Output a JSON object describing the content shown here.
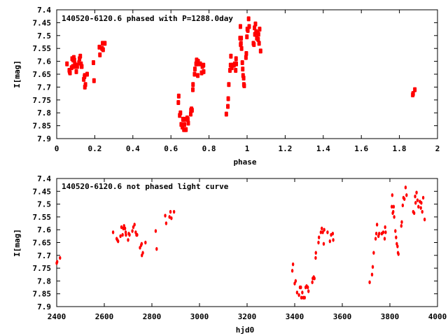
{
  "colors": {
    "marker": "#ff0000",
    "axis": "#000000"
  },
  "chart_data": [
    {
      "type": "scatter",
      "title": "140520-6120.6 phased with P=1288.0day",
      "xlabel": "phase",
      "ylabel": "I[mag]",
      "xlim": [
        0,
        2
      ],
      "ylim": [
        7.4,
        7.9
      ],
      "y_reversed": true,
      "xticks": [
        "0",
        "0.2",
        "0.4",
        "0.6",
        "0.8",
        "1",
        "1.2",
        "1.4",
        "1.6",
        "1.8",
        "2"
      ],
      "yticks": [
        "7.4",
        "7.45",
        "7.5",
        "7.55",
        "7.6",
        "7.65",
        "7.7",
        "7.75",
        "7.8",
        "7.85",
        "7.9"
      ],
      "x_field": "phase",
      "grid": false
    },
    {
      "type": "scatter",
      "title": "140520-6120.6 not phased light curve",
      "xlabel": "hjd0",
      "ylabel": "I[mag]",
      "xlim": [
        2400,
        4000
      ],
      "ylim": [
        7.4,
        7.9
      ],
      "y_reversed": true,
      "xticks": [
        "2400",
        "2600",
        "2800",
        "3000",
        "3200",
        "3400",
        "3600",
        "3800",
        "4000"
      ],
      "yticks": [
        "7.4",
        "7.45",
        "7.5",
        "7.55",
        "7.6",
        "7.65",
        "7.7",
        "7.75",
        "7.8",
        "7.85",
        "7.9"
      ],
      "x_field": "hjd",
      "grid": false
    }
  ],
  "points_fields": [
    "hjd",
    "phase",
    "mag"
  ],
  "points": [
    [
      2400,
      1.87,
      7.73
    ],
    [
      2402,
      1.872,
      7.725
    ],
    [
      2414,
      1.881,
      7.71
    ],
    [
      2637,
      0.054,
      7.61
    ],
    [
      2652,
      0.066,
      7.635
    ],
    [
      2655,
      0.068,
      7.64
    ],
    [
      2658,
      0.07,
      7.645
    ],
    [
      2668,
      0.078,
      7.625
    ],
    [
      2672,
      0.081,
      7.59
    ],
    [
      2677,
      0.085,
      7.62
    ],
    [
      2680,
      0.087,
      7.595
    ],
    [
      2683,
      0.09,
      7.585
    ],
    [
      2687,
      0.093,
      7.595
    ],
    [
      2690,
      0.095,
      7.61
    ],
    [
      2691,
      0.096,
      7.62
    ],
    [
      2700,
      0.103,
      7.64
    ],
    [
      2703,
      0.105,
      7.615
    ],
    [
      2706,
      0.108,
      7.62
    ],
    [
      2718,
      0.117,
      7.605
    ],
    [
      2722,
      0.12,
      7.59
    ],
    [
      2727,
      0.124,
      7.58
    ],
    [
      2732,
      0.128,
      7.61
    ],
    [
      2735,
      0.13,
      7.62
    ],
    [
      2738,
      0.132,
      7.62
    ],
    [
      2750,
      0.142,
      7.67
    ],
    [
      2755,
      0.146,
      7.66
    ],
    [
      2757,
      0.147,
      7.655
    ],
    [
      2758,
      0.148,
      7.7
    ],
    [
      2762,
      0.151,
      7.69
    ],
    [
      2773,
      0.16,
      7.65
    ],
    [
      2816,
      0.193,
      7.605
    ],
    [
      2820,
      0.196,
      7.675
    ],
    [
      2856,
      0.224,
      7.545
    ],
    [
      2860,
      0.227,
      7.575
    ],
    [
      2874,
      0.238,
      7.55
    ],
    [
      2878,
      0.241,
      7.53
    ],
    [
      2882,
      0.244,
      7.555
    ],
    [
      2893,
      0.253,
      7.53
    ],
    [
      3390,
      0.639,
      7.76
    ],
    [
      3393,
      0.641,
      7.735
    ],
    [
      3400,
      0.646,
      7.81
    ],
    [
      3404,
      0.65,
      7.8
    ],
    [
      3410,
      0.654,
      7.845
    ],
    [
      3418,
      0.66,
      7.855
    ],
    [
      3422,
      0.663,
      7.825
    ],
    [
      3426,
      0.667,
      7.825
    ],
    [
      3428,
      0.668,
      7.865
    ],
    [
      3432,
      0.671,
      7.845
    ],
    [
      3436,
      0.674,
      7.865
    ],
    [
      3442,
      0.679,
      7.865
    ],
    [
      3446,
      0.682,
      7.825
    ],
    [
      3450,
      0.685,
      7.82
    ],
    [
      3455,
      0.689,
      7.825
    ],
    [
      3458,
      0.691,
      7.84
    ],
    [
      3474,
      0.704,
      7.805
    ],
    [
      3476,
      0.705,
      7.79
    ],
    [
      3480,
      0.708,
      7.785
    ],
    [
      3483,
      0.711,
      7.79
    ],
    [
      3488,
      0.715,
      7.71
    ],
    [
      3489,
      0.716,
      7.69
    ],
    [
      3500,
      0.724,
      7.65
    ],
    [
      3502,
      0.726,
      7.63
    ],
    [
      3510,
      0.732,
      7.61
    ],
    [
      3514,
      0.735,
      7.595
    ],
    [
      3518,
      0.738,
      7.61
    ],
    [
      3522,
      0.741,
      7.655
    ],
    [
      3524,
      0.743,
      7.6
    ],
    [
      3538,
      0.754,
      7.61
    ],
    [
      3548,
      0.761,
      7.645
    ],
    [
      3553,
      0.765,
      7.62
    ],
    [
      3560,
      0.771,
      7.615
    ],
    [
      3562,
      0.772,
      7.64
    ],
    [
      3715,
      0.891,
      7.805
    ],
    [
      3725,
      0.899,
      7.775
    ],
    [
      3728,
      0.901,
      7.745
    ],
    [
      3732,
      0.904,
      7.69
    ],
    [
      3740,
      0.91,
      7.635
    ],
    [
      3743,
      0.913,
      7.615
    ],
    [
      3746,
      0.915,
      7.58
    ],
    [
      3752,
      0.92,
      7.625
    ],
    [
      3755,
      0.922,
      7.615
    ],
    [
      3766,
      0.931,
      7.615
    ],
    [
      3772,
      0.935,
      7.61
    ],
    [
      3778,
      0.94,
      7.635
    ],
    [
      3780,
      0.942,
      7.59
    ],
    [
      3782,
      0.943,
      7.61
    ],
    [
      3808,
      0.963,
      7.51
    ],
    [
      3810,
      0.965,
      7.465
    ],
    [
      3812,
      0.966,
      7.535
    ],
    [
      3814,
      0.968,
      7.53
    ],
    [
      3816,
      0.969,
      7.51
    ],
    [
      3818,
      0.971,
      7.55
    ],
    [
      3823,
      0.975,
      7.605
    ],
    [
      3826,
      0.977,
      7.63
    ],
    [
      3829,
      0.979,
      7.655
    ],
    [
      3832,
      0.982,
      7.665
    ],
    [
      3834,
      0.983,
      7.69
    ],
    [
      3836,
      0.985,
      7.695
    ],
    [
      3848,
      0.994,
      7.585
    ],
    [
      3850,
      0.996,
      7.57
    ],
    [
      3854,
      0.999,
      7.505
    ],
    [
      3857,
      1.001,
      7.475
    ],
    [
      3861,
      1.004,
      7.48
    ],
    [
      3866,
      1.008,
      7.435
    ],
    [
      3870,
      1.011,
      7.465
    ],
    [
      3898,
      1.033,
      7.53
    ],
    [
      3902,
      1.036,
      7.535
    ],
    [
      3906,
      1.039,
      7.47
    ],
    [
      3908,
      1.041,
      7.495
    ],
    [
      3912,
      1.044,
      7.455
    ],
    [
      3916,
      1.047,
      7.485
    ],
    [
      3920,
      1.051,
      7.51
    ],
    [
      3926,
      1.055,
      7.49
    ],
    [
      3930,
      1.058,
      7.515
    ],
    [
      3932,
      1.06,
      7.495
    ],
    [
      3936,
      1.063,
      7.53
    ],
    [
      3940,
      1.066,
      7.475
    ],
    [
      3946,
      1.071,
      7.56
    ]
  ]
}
